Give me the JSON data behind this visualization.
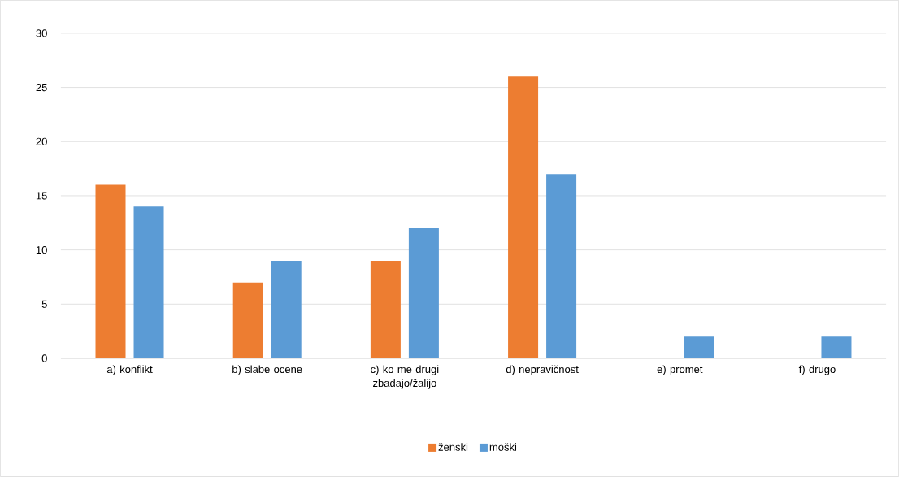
{
  "chart_data": {
    "type": "bar",
    "categories": [
      "a) konflikt",
      "b) slabe ocene",
      "c) ko me drugi zbadajo/žalijo",
      "d) nepravičnost",
      "e) promet",
      "f) drugo"
    ],
    "series": [
      {
        "name": "ženski",
        "color": "#ed7d31",
        "values": [
          16,
          7,
          9,
          26,
          0,
          0
        ]
      },
      {
        "name": "moški",
        "color": "#5b9bd5",
        "values": [
          14,
          9,
          12,
          17,
          2,
          2
        ]
      }
    ],
    "ylim": [
      0,
      30
    ],
    "yticks": [
      0,
      5,
      10,
      15,
      20,
      25,
      30
    ],
    "grid": "y",
    "legend": "bottom"
  }
}
